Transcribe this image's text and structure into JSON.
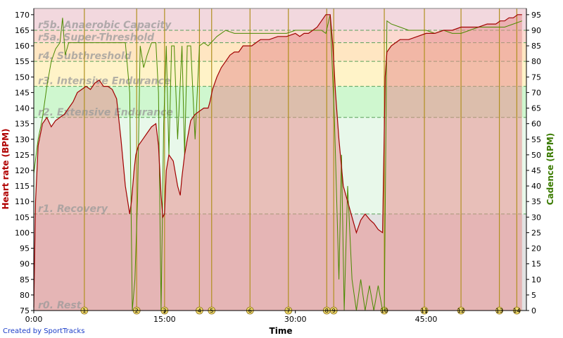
{
  "credit": "Created by SportTracks",
  "colors": {
    "hr_line": "#a00000",
    "hr_fill": "#e89090",
    "cadence_line": "#4a8a00",
    "marker_line": "#b09020",
    "left_axis_text": "#b00000",
    "right_axis_text": "#3a7a00"
  },
  "chart_data": {
    "type": "line",
    "xlabel": "Time",
    "ylabel_left": "Heart rate (BPM)",
    "ylabel_right": "Cadence (RPM)",
    "xlim": [
      0,
      56.5
    ],
    "ylim_left": [
      75,
      172
    ],
    "ylim_right": [
      0,
      97
    ],
    "x_ticks": [
      {
        "v": 0,
        "label": "0:00"
      },
      {
        "v": 15,
        "label": "15:00"
      },
      {
        "v": 30,
        "label": "30:00"
      },
      {
        "v": 45,
        "label": "45:00"
      }
    ],
    "y_left_ticks": [
      75,
      80,
      85,
      90,
      95,
      100,
      105,
      110,
      115,
      120,
      125,
      130,
      135,
      140,
      145,
      150,
      155,
      160,
      165,
      170
    ],
    "y_right_ticks": [
      0,
      5,
      10,
      15,
      20,
      25,
      30,
      35,
      40,
      45,
      50,
      55,
      60,
      65,
      70,
      75,
      80,
      85,
      90,
      95
    ],
    "zones": [
      {
        "label": "r0. Rest",
        "low": 75,
        "high": 106,
        "color": "#e2e2e2"
      },
      {
        "label": "r1. Recovery",
        "low": 106,
        "high": 137,
        "color": "#e8f8ea"
      },
      {
        "label": "r2. Extensive Endurance",
        "low": 137,
        "high": 147,
        "color": "#cff7cf"
      },
      {
        "label": "r3. Intensive Endurance",
        "low": 147,
        "high": 155,
        "color": "#fff3c8"
      },
      {
        "label": "r4. Subthreshold",
        "low": 155,
        "high": 161,
        "color": "#ffe6c2"
      },
      {
        "label": "r5a. Super-Threshold",
        "low": 161,
        "high": 165,
        "color": "#fbd9d0"
      },
      {
        "label": "r5b. Anaerobic Capacity",
        "low": 165,
        "high": 172,
        "color": "#f2d8de"
      }
    ],
    "lap_markers": [
      {
        "label": "1",
        "x": 5.8
      },
      {
        "label": "2",
        "x": 11.8
      },
      {
        "label": "3",
        "x": 15.0
      },
      {
        "label": "4",
        "x": 19.0
      },
      {
        "label": "5",
        "x": 20.4
      },
      {
        "label": "6",
        "x": 24.8
      },
      {
        "label": "7",
        "x": 29.2
      },
      {
        "label": "8",
        "x": 33.6
      },
      {
        "label": "9",
        "x": 34.4
      },
      {
        "label": "10",
        "x": 40.2
      },
      {
        "label": "11",
        "x": 44.8
      },
      {
        "label": "12",
        "x": 49.0
      },
      {
        "label": "13",
        "x": 53.4
      },
      {
        "label": "14",
        "x": 55.4
      }
    ],
    "series": [
      {
        "name": "Heart rate (BPM)",
        "axis": "left",
        "x": [
          0,
          0.2,
          0.5,
          1,
          1.5,
          2,
          2.5,
          3,
          3.5,
          4,
          4.5,
          5,
          5.5,
          6,
          6.5,
          7,
          7.5,
          8,
          8.5,
          9,
          9.5,
          10,
          10.5,
          11,
          11.2,
          11.5,
          11.7,
          12,
          12.5,
          13,
          13.5,
          14,
          14.3,
          14.6,
          14.8,
          15,
          15.2,
          15.5,
          16,
          16.5,
          16.8,
          17,
          17.3,
          17.6,
          18,
          18.5,
          19,
          19.5,
          20,
          20.2,
          20.5,
          21,
          21.5,
          22,
          22.5,
          23,
          23.5,
          24,
          24.5,
          25,
          25.5,
          26,
          27,
          28,
          29,
          30,
          30.5,
          31,
          31.5,
          32,
          32.5,
          33,
          33.5,
          34,
          34.3,
          34.6,
          35,
          35.5,
          36,
          36.5,
          37,
          37.5,
          38,
          38.3,
          38.6,
          39,
          39.5,
          40,
          40.3,
          40.5,
          41,
          41.5,
          42,
          43,
          44,
          45,
          46,
          47,
          48,
          49,
          50,
          51,
          52,
          53,
          53.5,
          54,
          54.5,
          55,
          55.5,
          56
        ],
        "y": [
          76,
          110,
          128,
          135,
          137,
          134,
          136,
          137,
          138,
          140,
          142,
          145,
          146,
          147,
          146,
          148,
          149,
          147,
          147,
          146,
          143,
          130,
          115,
          106,
          110,
          120,
          125,
          128,
          130,
          132,
          134,
          135,
          128,
          112,
          105,
          106,
          120,
          125,
          123,
          115,
          112,
          118,
          125,
          130,
          136,
          138,
          139,
          140,
          140,
          142,
          146,
          150,
          153,
          155,
          157,
          158,
          158,
          160,
          160,
          160,
          161,
          162,
          162,
          163,
          163,
          164,
          163,
          164,
          164,
          165,
          166,
          168,
          170,
          170,
          160,
          145,
          130,
          115,
          110,
          105,
          100,
          104,
          106,
          105,
          104,
          103,
          101,
          100,
          150,
          158,
          160,
          161,
          162,
          162,
          163,
          164,
          164,
          165,
          165,
          166,
          166,
          166,
          167,
          167,
          168,
          168,
          169,
          169,
          170,
          170
        ]
      },
      {
        "name": "Cadence (RPM)",
        "axis": "right",
        "x": [
          0,
          0.5,
          1,
          1.5,
          2,
          2.5,
          3,
          3.3,
          3.6,
          4,
          5,
          6,
          7,
          8,
          9,
          10,
          10.5,
          11,
          11.3,
          11.6,
          11.9,
          12.2,
          12.6,
          13,
          13.5,
          14,
          14.3,
          14.6,
          14.9,
          15.2,
          15.5,
          15.8,
          16.1,
          16.5,
          17,
          17.3,
          17.6,
          18,
          18.5,
          19,
          19.5,
          20,
          21,
          22,
          23,
          24,
          25,
          26,
          27,
          28,
          29,
          30,
          31,
          32,
          33,
          33.5,
          34,
          34.5,
          35,
          35.3,
          35.6,
          36,
          36.5,
          37,
          37.5,
          38,
          38.5,
          39,
          39.5,
          40,
          40.2,
          40.5,
          41,
          42,
          43,
          44,
          45,
          46,
          47,
          48,
          49,
          50,
          51,
          52,
          53,
          54,
          55,
          56
        ],
        "y": [
          44,
          55,
          62,
          72,
          80,
          84,
          86,
          94,
          82,
          86,
          86,
          86,
          86,
          86,
          86,
          86,
          86,
          70,
          0,
          10,
          35,
          85,
          78,
          82,
          86,
          86,
          70,
          0,
          60,
          85,
          50,
          85,
          85,
          55,
          85,
          50,
          85,
          85,
          55,
          85,
          86,
          85,
          88,
          90,
          89,
          89,
          89,
          89,
          89,
          89,
          89,
          90,
          90,
          90,
          90,
          89,
          95,
          60,
          10,
          50,
          0,
          40,
          10,
          0,
          10,
          0,
          8,
          0,
          8,
          0,
          0,
          93,
          92,
          91,
          90,
          90,
          90,
          89,
          90,
          89,
          89,
          90,
          91,
          91,
          91,
          91,
          92,
          93
        ]
      }
    ]
  }
}
